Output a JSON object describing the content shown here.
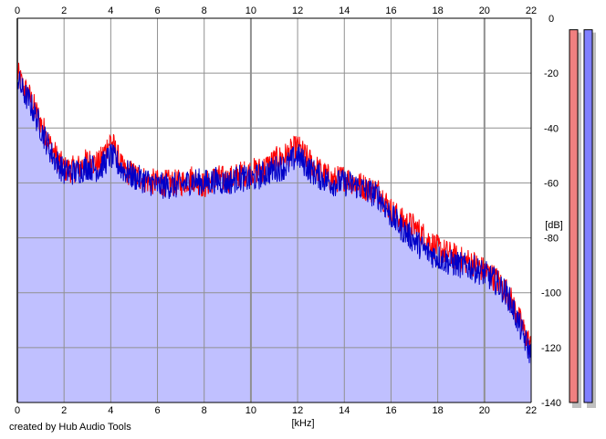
{
  "credit": "created by Hub Audio Tools",
  "chart_data": {
    "type": "area",
    "xlabel": "[kHz]",
    "ylabel": "[dB]",
    "xlim": [
      0,
      22
    ],
    "ylim": [
      -140,
      0
    ],
    "x_ticks": [
      0,
      2,
      4,
      6,
      8,
      10,
      12,
      14,
      16,
      18,
      20,
      22
    ],
    "y_ticks": [
      0,
      -20,
      -40,
      -60,
      -80,
      -100,
      -120,
      -140
    ],
    "grid": true,
    "colors": {
      "fill": "#c0c0ff",
      "left_line": "#ff0000",
      "right_line": "#0000c8",
      "meter_left": "#f08080",
      "meter_right": "#8080ff"
    },
    "x": [
      0,
      0.25,
      0.5,
      1,
      1.5,
      2,
      2.5,
      3,
      3.5,
      4,
      4.5,
      5,
      5.5,
      6,
      6.5,
      7,
      7.5,
      8,
      8.5,
      9,
      9.5,
      10,
      10.5,
      11,
      11.5,
      12,
      12.5,
      13,
      13.5,
      14,
      14.5,
      15,
      15.5,
      16,
      16.5,
      17,
      17.5,
      18,
      18.5,
      19,
      19.5,
      20,
      20.5,
      21,
      21.5,
      22
    ],
    "series": [
      {
        "values": [
          -20,
          -25,
          -28,
          -38,
          -48,
          -55,
          -55,
          -52,
          -53,
          -44,
          -55,
          -57,
          -59,
          -60,
          -60,
          -60,
          -58,
          -61,
          -58,
          -59,
          -57,
          -56,
          -55,
          -52,
          -50,
          -47,
          -52,
          -56,
          -59,
          -58,
          -60,
          -62,
          -63,
          -70,
          -74,
          -76,
          -80,
          -84,
          -86,
          -88,
          -89,
          -92,
          -95,
          -100,
          -110,
          -120
        ]
      },
      {
        "values": [
          -22,
          -27,
          -30,
          -40,
          -50,
          -56,
          -56,
          -54,
          -55,
          -50,
          -55,
          -58,
          -59,
          -61,
          -61,
          -61,
          -59,
          -60,
          -59,
          -60,
          -58,
          -59,
          -57,
          -55,
          -54,
          -50,
          -55,
          -58,
          -60,
          -60,
          -61,
          -63,
          -65,
          -72,
          -77,
          -81,
          -85,
          -87,
          -89,
          -90,
          -91,
          -93,
          -96,
          -101,
          -112,
          -123
        ]
      }
    ]
  },
  "meters": {
    "left_level": 0.97,
    "right_level": 0.97
  }
}
